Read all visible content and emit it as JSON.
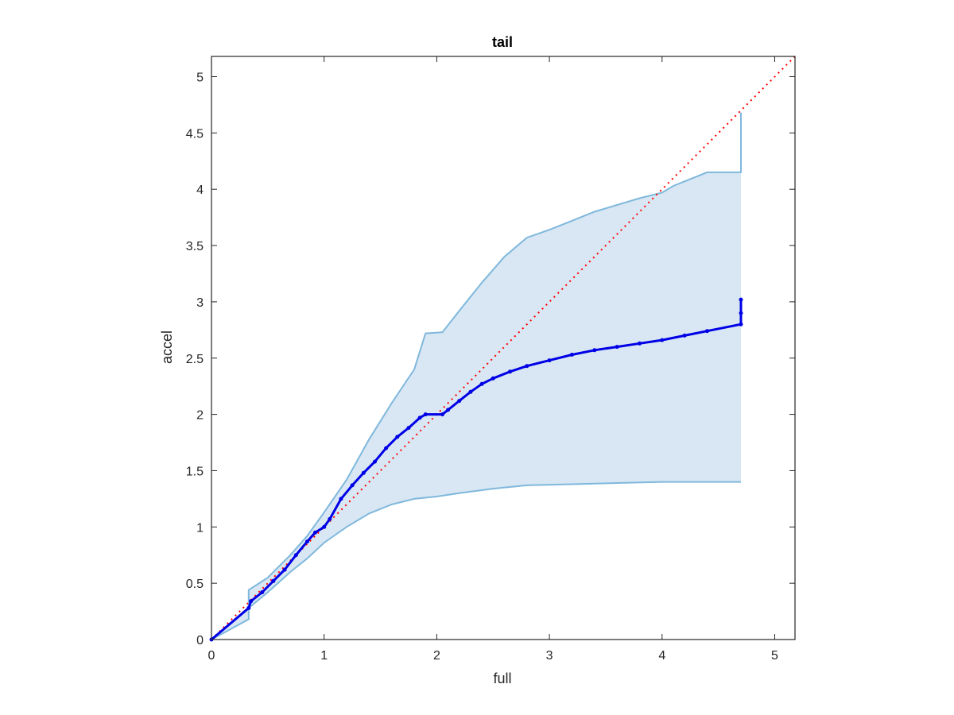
{
  "chart_data": {
    "type": "scatter",
    "title": "tail",
    "xlabel": "full",
    "ylabel": "accel",
    "xlim": [
      0,
      5.18
    ],
    "ylim": [
      0,
      5.18
    ],
    "xticks": [
      0,
      1,
      2,
      3,
      4,
      5
    ],
    "xtick_labels": [
      "0",
      "1",
      "2",
      "3",
      "4",
      "5"
    ],
    "yticks": [
      0,
      0.5,
      1,
      1.5,
      2,
      2.5,
      3,
      3.5,
      4,
      4.5,
      5
    ],
    "ytick_labels": [
      "0",
      "0.5",
      "1",
      "1.5",
      "2",
      "2.5",
      "3",
      "3.5",
      "4",
      "4.5",
      "5"
    ],
    "grid": false,
    "colors": {
      "band_fill": "#d8e7f3",
      "band_edge": "#7fb8dc",
      "points": "#0000e6",
      "reference": "#ff0000",
      "axes": "#262626"
    },
    "band": {
      "upper": [
        [
          0,
          0
        ],
        [
          0.33,
          0.28
        ],
        [
          0.33,
          0.44
        ],
        [
          0.5,
          0.55
        ],
        [
          0.7,
          0.75
        ],
        [
          0.85,
          0.92
        ],
        [
          1.0,
          1.13
        ],
        [
          1.2,
          1.42
        ],
        [
          1.4,
          1.78
        ],
        [
          1.6,
          2.1
        ],
        [
          1.8,
          2.4
        ],
        [
          1.9,
          2.72
        ],
        [
          2.05,
          2.73
        ],
        [
          2.2,
          2.92
        ],
        [
          2.4,
          3.17
        ],
        [
          2.6,
          3.4
        ],
        [
          2.8,
          3.57
        ],
        [
          3.0,
          3.64
        ],
        [
          3.2,
          3.72
        ],
        [
          3.4,
          3.8
        ],
        [
          3.6,
          3.86
        ],
        [
          3.8,
          3.92
        ],
        [
          4.0,
          3.97
        ],
        [
          4.1,
          4.03
        ],
        [
          4.2,
          4.07
        ],
        [
          4.4,
          4.15
        ],
        [
          4.7,
          4.15
        ],
        [
          4.7,
          4.68
        ]
      ],
      "lower": [
        [
          0,
          0
        ],
        [
          0.33,
          0.18
        ],
        [
          0.33,
          0.28
        ],
        [
          0.5,
          0.42
        ],
        [
          0.7,
          0.6
        ],
        [
          0.85,
          0.72
        ],
        [
          1.0,
          0.86
        ],
        [
          1.2,
          1.0
        ],
        [
          1.4,
          1.12
        ],
        [
          1.6,
          1.2
        ],
        [
          1.8,
          1.25
        ],
        [
          2.0,
          1.27
        ],
        [
          2.2,
          1.3
        ],
        [
          2.5,
          1.34
        ],
        [
          2.8,
          1.37
        ],
        [
          3.2,
          1.38
        ],
        [
          3.6,
          1.39
        ],
        [
          4.0,
          1.4
        ],
        [
          4.7,
          1.4
        ]
      ]
    },
    "series": [
      {
        "values": [
          [
            0,
            0
          ],
          [
            0.33,
            0.28
          ],
          [
            0.35,
            0.34
          ],
          [
            0.45,
            0.42
          ],
          [
            0.55,
            0.52
          ],
          [
            0.65,
            0.62
          ],
          [
            0.75,
            0.75
          ],
          [
            0.85,
            0.87
          ],
          [
            0.92,
            0.95
          ],
          [
            1.0,
            1.0
          ],
          [
            1.05,
            1.07
          ],
          [
            1.15,
            1.25
          ],
          [
            1.25,
            1.37
          ],
          [
            1.35,
            1.48
          ],
          [
            1.45,
            1.58
          ],
          [
            1.55,
            1.7
          ],
          [
            1.65,
            1.8
          ],
          [
            1.75,
            1.88
          ],
          [
            1.85,
            1.97
          ],
          [
            1.9,
            2.0
          ],
          [
            2.05,
            2.0
          ],
          [
            2.1,
            2.04
          ],
          [
            2.2,
            2.12
          ],
          [
            2.3,
            2.2
          ],
          [
            2.4,
            2.27
          ],
          [
            2.5,
            2.32
          ],
          [
            2.65,
            2.38
          ],
          [
            2.8,
            2.43
          ],
          [
            3.0,
            2.48
          ],
          [
            3.2,
            2.53
          ],
          [
            3.4,
            2.57
          ],
          [
            3.6,
            2.6
          ],
          [
            3.8,
            2.63
          ],
          [
            4.0,
            2.66
          ],
          [
            4.2,
            2.7
          ],
          [
            4.4,
            2.74
          ],
          [
            4.7,
            2.8
          ],
          [
            4.7,
            2.9
          ],
          [
            4.7,
            3.02
          ]
        ]
      }
    ],
    "reference_line": [
      [
        0,
        0
      ],
      [
        5.18,
        5.18
      ]
    ]
  }
}
